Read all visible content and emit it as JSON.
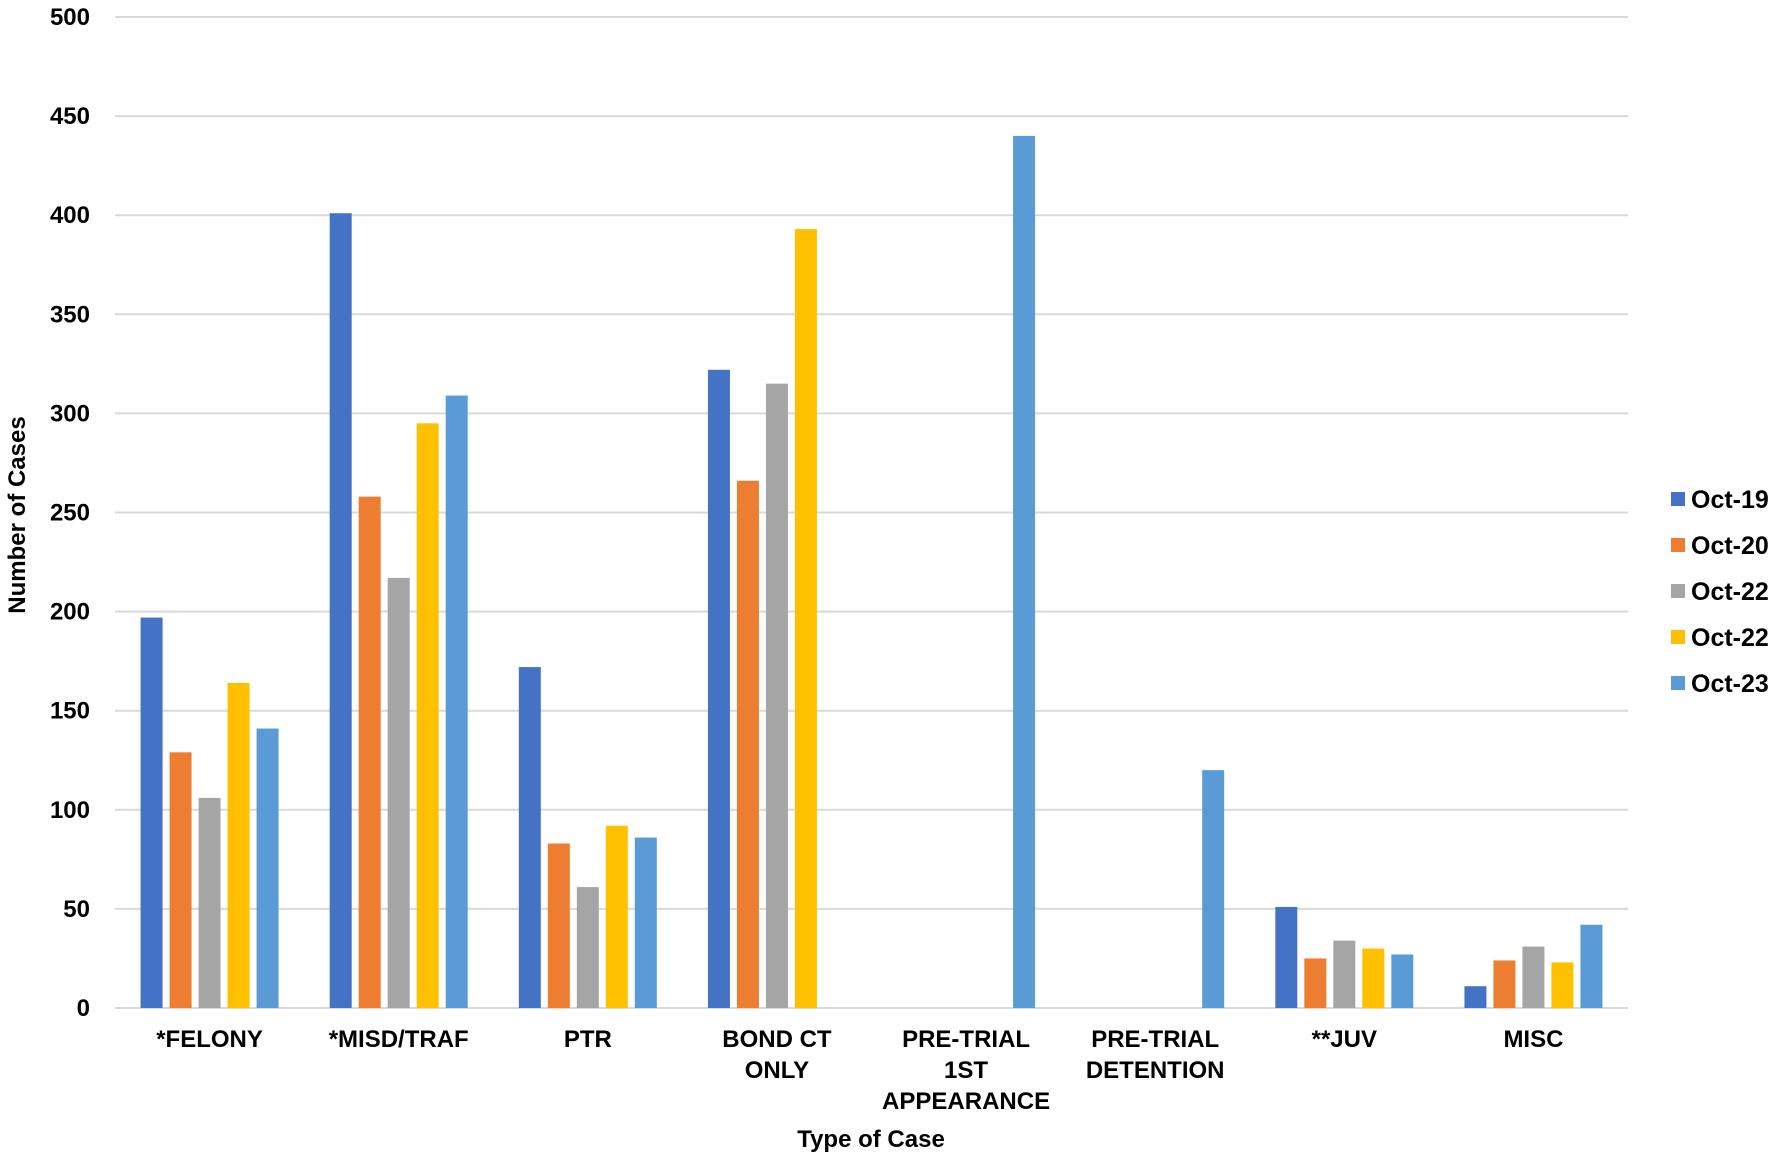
{
  "chart_data": {
    "type": "bar",
    "title": "",
    "xlabel": "Type of Case",
    "ylabel": "Number of Cases",
    "ylim": [
      0,
      500
    ],
    "ytick_step": 50,
    "grid": true,
    "legend_position": "right",
    "categories": [
      [
        "*FELONY"
      ],
      [
        "*MISD/TRAF"
      ],
      [
        "PTR"
      ],
      [
        "BOND CT",
        "ONLY"
      ],
      [
        "PRE-TRIAL",
        "1ST",
        "APPEARANCE"
      ],
      [
        "PRE-TRIAL",
        "DETENTION"
      ],
      [
        "**JUV"
      ],
      [
        "MISC"
      ]
    ],
    "series": [
      {
        "name": "Oct-19",
        "color": "#4472c4",
        "values": [
          197,
          401,
          172,
          322,
          0,
          0,
          51,
          11
        ]
      },
      {
        "name": "Oct-20",
        "color": "#ed7d31",
        "values": [
          129,
          258,
          83,
          266,
          0,
          0,
          25,
          24
        ]
      },
      {
        "name": "Oct-22",
        "color": "#a5a5a5",
        "values": [
          106,
          217,
          61,
          315,
          0,
          0,
          34,
          31
        ]
      },
      {
        "name": "Oct-22",
        "color": "#ffc000",
        "values": [
          164,
          295,
          92,
          393,
          0,
          0,
          30,
          23
        ]
      },
      {
        "name": "Oct-23",
        "color": "#5b9bd5",
        "values": [
          141,
          309,
          86,
          0,
          440,
          120,
          27,
          42
        ]
      }
    ]
  }
}
